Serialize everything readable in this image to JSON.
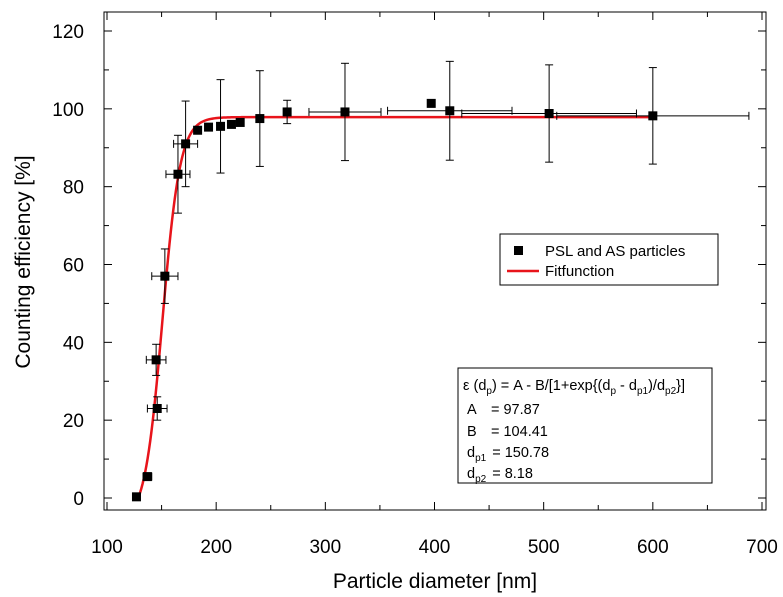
{
  "chart_data": {
    "type": "scatter",
    "xlabel": "Particle diameter [nm]",
    "ylabel": "Counting efficiency [%]",
    "xlim": [
      100,
      700
    ],
    "ylim": [
      0,
      120
    ],
    "xticks": [
      "100",
      "200",
      "300",
      "400",
      "500",
      "600",
      "700"
    ],
    "yticks": [
      "0",
      "20",
      "40",
      "60",
      "80",
      "100",
      "120"
    ],
    "grid": false,
    "legend_position": "right-middle",
    "series": [
      {
        "name": "PSL and AS particles",
        "kind": "scatter",
        "marker": "square",
        "color": "#000000",
        "points": [
          {
            "x": 127,
            "y": 0.3,
            "xerr": 3,
            "yerr": 0
          },
          {
            "x": 137,
            "y": 5.5,
            "xerr": 4,
            "yerr": 0
          },
          {
            "x": 145,
            "y": 35.5,
            "xerr": 9,
            "yerr": 4
          },
          {
            "x": 146,
            "y": 23.0,
            "xerr": 9,
            "yerr": 3
          },
          {
            "x": 153,
            "y": 57.0,
            "xerr": 12,
            "yerr": 7
          },
          {
            "x": 165,
            "y": 83.2,
            "xerr": 11,
            "yerr": 10
          },
          {
            "x": 172,
            "y": 91.0,
            "xerr": 11,
            "yerr": 11
          },
          {
            "x": 183,
            "y": 94.5,
            "xerr": 0,
            "yerr": 0
          },
          {
            "x": 193,
            "y": 95.3,
            "xerr": 0,
            "yerr": 0
          },
          {
            "x": 204,
            "y": 95.5,
            "xerr": 0,
            "yerr": 12
          },
          {
            "x": 214,
            "y": 96.0,
            "xerr": 0,
            "yerr": 0
          },
          {
            "x": 222,
            "y": 96.5,
            "xerr": 0,
            "yerr": 0
          },
          {
            "x": 240,
            "y": 97.5,
            "xerr": 0,
            "yerr": 12.3
          },
          {
            "x": 265,
            "y": 99.2,
            "xerr": 0,
            "yerr": 3
          },
          {
            "x": 318,
            "y": 99.2,
            "xerr": 33,
            "yerr": 12.5
          },
          {
            "x": 397,
            "y": 101.4,
            "xerr": 0,
            "yerr": 0
          },
          {
            "x": 414,
            "y": 99.5,
            "xerr": 57,
            "yerr": 12.7
          },
          {
            "x": 505,
            "y": 98.8,
            "xerr": 80,
            "yerr": 12.5
          },
          {
            "x": 600,
            "y": 98.2,
            "xerr": 88,
            "yerr": 12.4
          }
        ]
      },
      {
        "name": "Fitfunction",
        "kind": "line",
        "color": "#e8141b",
        "x_range": [
          129,
          600
        ],
        "params": {
          "A": 97.87,
          "B": 104.41,
          "dp1": 150.78,
          "dp2": 8.18
        }
      }
    ],
    "fit_box": {
      "formula_lhs": "ε (d",
      "formula_p": "p",
      "formula_mid1": ") = A - B/[1+exp{(d",
      "formula_p2": "p",
      "formula_mid2": " - d",
      "formula_p1": "p1",
      "formula_mid3": ")/d",
      "formula_p2b": "p2",
      "formula_end": "}]",
      "a_label": "A",
      "a_value": "= 97.87",
      "b_label": "B",
      "b_value": "= 104.41",
      "dp1_base": "d",
      "dp1_sub": "p1",
      "dp1_value": "= 150.78",
      "dp2_base": "d",
      "dp2_sub": "p2",
      "dp2_value": "= 8.18"
    }
  }
}
